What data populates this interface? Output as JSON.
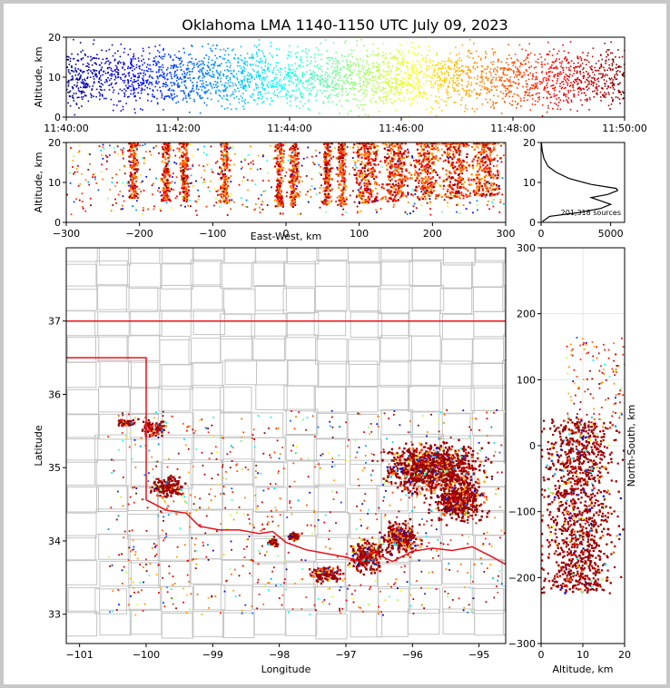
{
  "title": "Oklahoma LMA 1140-1150 UTC July 09, 2023",
  "colors": {
    "state_border": "#e8101a",
    "county_lines": "#c4c4c4",
    "frame": "#c8c8c8",
    "storm_core": "#9b0000",
    "colormap": [
      "#00008f",
      "#0000ff",
      "#0080ff",
      "#00ffff",
      "#80ff80",
      "#ffff00",
      "#ff8000",
      "#ff0000",
      "#800000"
    ]
  },
  "chart_data": [
    {
      "id": "time_height",
      "type": "scatter",
      "ylabel": "Altitude, km",
      "xlabel": "",
      "ylim": [
        0,
        20
      ],
      "yticks": [
        "0",
        "10",
        "20"
      ],
      "xlim": [
        "11:40:00",
        "11:50:00"
      ],
      "xticks": [
        "11:40:00",
        "11:42:00",
        "11:44:00",
        "11:46:00",
        "11:48:00",
        "11:50:00"
      ],
      "color_by": "time",
      "grid": false
    },
    {
      "id": "east_west_altitude",
      "type": "scatter",
      "xlabel": "East-West, km",
      "ylabel": "Altitude, km",
      "xlim": [
        -300,
        300
      ],
      "xticks": [
        "−300",
        "−200",
        "−100",
        "0",
        "100",
        "200",
        "300"
      ],
      "ylim": [
        0,
        20
      ],
      "yticks": [
        "0",
        "10",
        "20"
      ],
      "clusters_km": [
        -210,
        -165,
        -140,
        -85,
        -10,
        10,
        55,
        75,
        110,
        150,
        190,
        230,
        270
      ],
      "grid": false
    },
    {
      "id": "altitude_histogram",
      "type": "line",
      "xlim": [
        0,
        6000
      ],
      "xticks": [
        "0",
        "5000"
      ],
      "ylim": [
        0,
        20
      ],
      "yticks": [
        "0",
        "10",
        "20"
      ],
      "annotation": "201,318 sources",
      "profile": [
        {
          "alt": 0.2,
          "count": 100
        },
        {
          "alt": 1.5,
          "count": 600
        },
        {
          "alt": 2.5,
          "count": 2800
        },
        {
          "alt": 3.5,
          "count": 4300
        },
        {
          "alt": 4.5,
          "count": 5000
        },
        {
          "alt": 5.5,
          "count": 4200
        },
        {
          "alt": 6.2,
          "count": 3600
        },
        {
          "alt": 7.0,
          "count": 4800
        },
        {
          "alt": 8.0,
          "count": 5500
        },
        {
          "alt": 8.5,
          "count": 5400
        },
        {
          "alt": 9.5,
          "count": 3600
        },
        {
          "alt": 11.0,
          "count": 2000
        },
        {
          "alt": 12.5,
          "count": 1100
        },
        {
          "alt": 14.0,
          "count": 500
        },
        {
          "alt": 16.0,
          "count": 200
        },
        {
          "alt": 18.0,
          "count": 80
        },
        {
          "alt": 20.0,
          "count": 20
        }
      ]
    },
    {
      "id": "plan_view",
      "type": "scatter",
      "xlabel": "Longitude",
      "ylabel": "Latitude",
      "xlim": [
        -101.2,
        -94.6
      ],
      "ylim": [
        32.6,
        38.0
      ],
      "xticks": [
        "−101",
        "−100",
        "−99",
        "−98",
        "−97",
        "−96",
        "−95"
      ],
      "yticks": [
        "33",
        "34",
        "35",
        "36",
        "37"
      ],
      "storm_regions": [
        {
          "lon": -95.7,
          "lat": 35.0,
          "rlon": 1.0,
          "rlat": 0.45
        },
        {
          "lon": -95.3,
          "lat": 34.55,
          "rlon": 0.55,
          "rlat": 0.35
        },
        {
          "lon": -96.2,
          "lat": 34.05,
          "rlon": 0.4,
          "rlat": 0.3
        },
        {
          "lon": -96.7,
          "lat": 33.8,
          "rlon": 0.35,
          "rlat": 0.3
        },
        {
          "lon": -99.7,
          "lat": 34.75,
          "rlon": 0.35,
          "rlat": 0.2
        },
        {
          "lon": -99.9,
          "lat": 35.55,
          "rlon": 0.25,
          "rlat": 0.15
        },
        {
          "lon": -100.3,
          "lat": 35.62,
          "rlon": 0.2,
          "rlat": 0.07
        },
        {
          "lon": -97.3,
          "lat": 33.55,
          "rlon": 0.35,
          "rlat": 0.15
        },
        {
          "lon": -97.8,
          "lat": 34.08,
          "rlon": 0.12,
          "rlat": 0.07
        },
        {
          "lon": -98.1,
          "lat": 34.0,
          "rlon": 0.1,
          "rlat": 0.08
        }
      ],
      "grid": false
    },
    {
      "id": "altitude_north_south",
      "type": "scatter",
      "xlabel": "Altitude, km",
      "ylabel": "North-South, km",
      "xlim": [
        0,
        20
      ],
      "xticks": [
        "0",
        "10",
        "20"
      ],
      "ylim": [
        -300,
        300
      ],
      "yticks": [
        "−300",
        "−200",
        "−100",
        "0",
        "100",
        "200",
        "300"
      ],
      "grid": true
    }
  ]
}
